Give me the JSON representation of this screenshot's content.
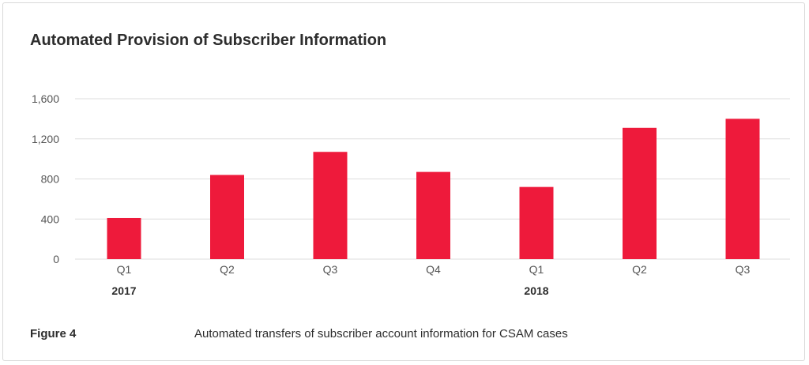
{
  "chart_data": {
    "type": "bar",
    "title": "Automated Provision of Subscriber Information",
    "categories": [
      "Q1",
      "Q2",
      "Q3",
      "Q4",
      "Q1",
      "Q2",
      "Q3"
    ],
    "groups": [
      {
        "label": "2017",
        "start_index": 0
      },
      {
        "label": "2018",
        "start_index": 4
      }
    ],
    "values": [
      410,
      840,
      1070,
      870,
      720,
      1310,
      1400
    ],
    "ylim": [
      0,
      1600
    ],
    "yticks": [
      0,
      400,
      800,
      1200,
      1600
    ],
    "ytick_labels": [
      "0",
      "400",
      "800",
      "1,200",
      "1,600"
    ],
    "grid": true,
    "bar_color": "#ee1a3b",
    "grid_color": "#dddddd"
  },
  "figure": {
    "label": "Figure 4",
    "caption": "Automated transfers of subscriber account information for CSAM cases"
  }
}
